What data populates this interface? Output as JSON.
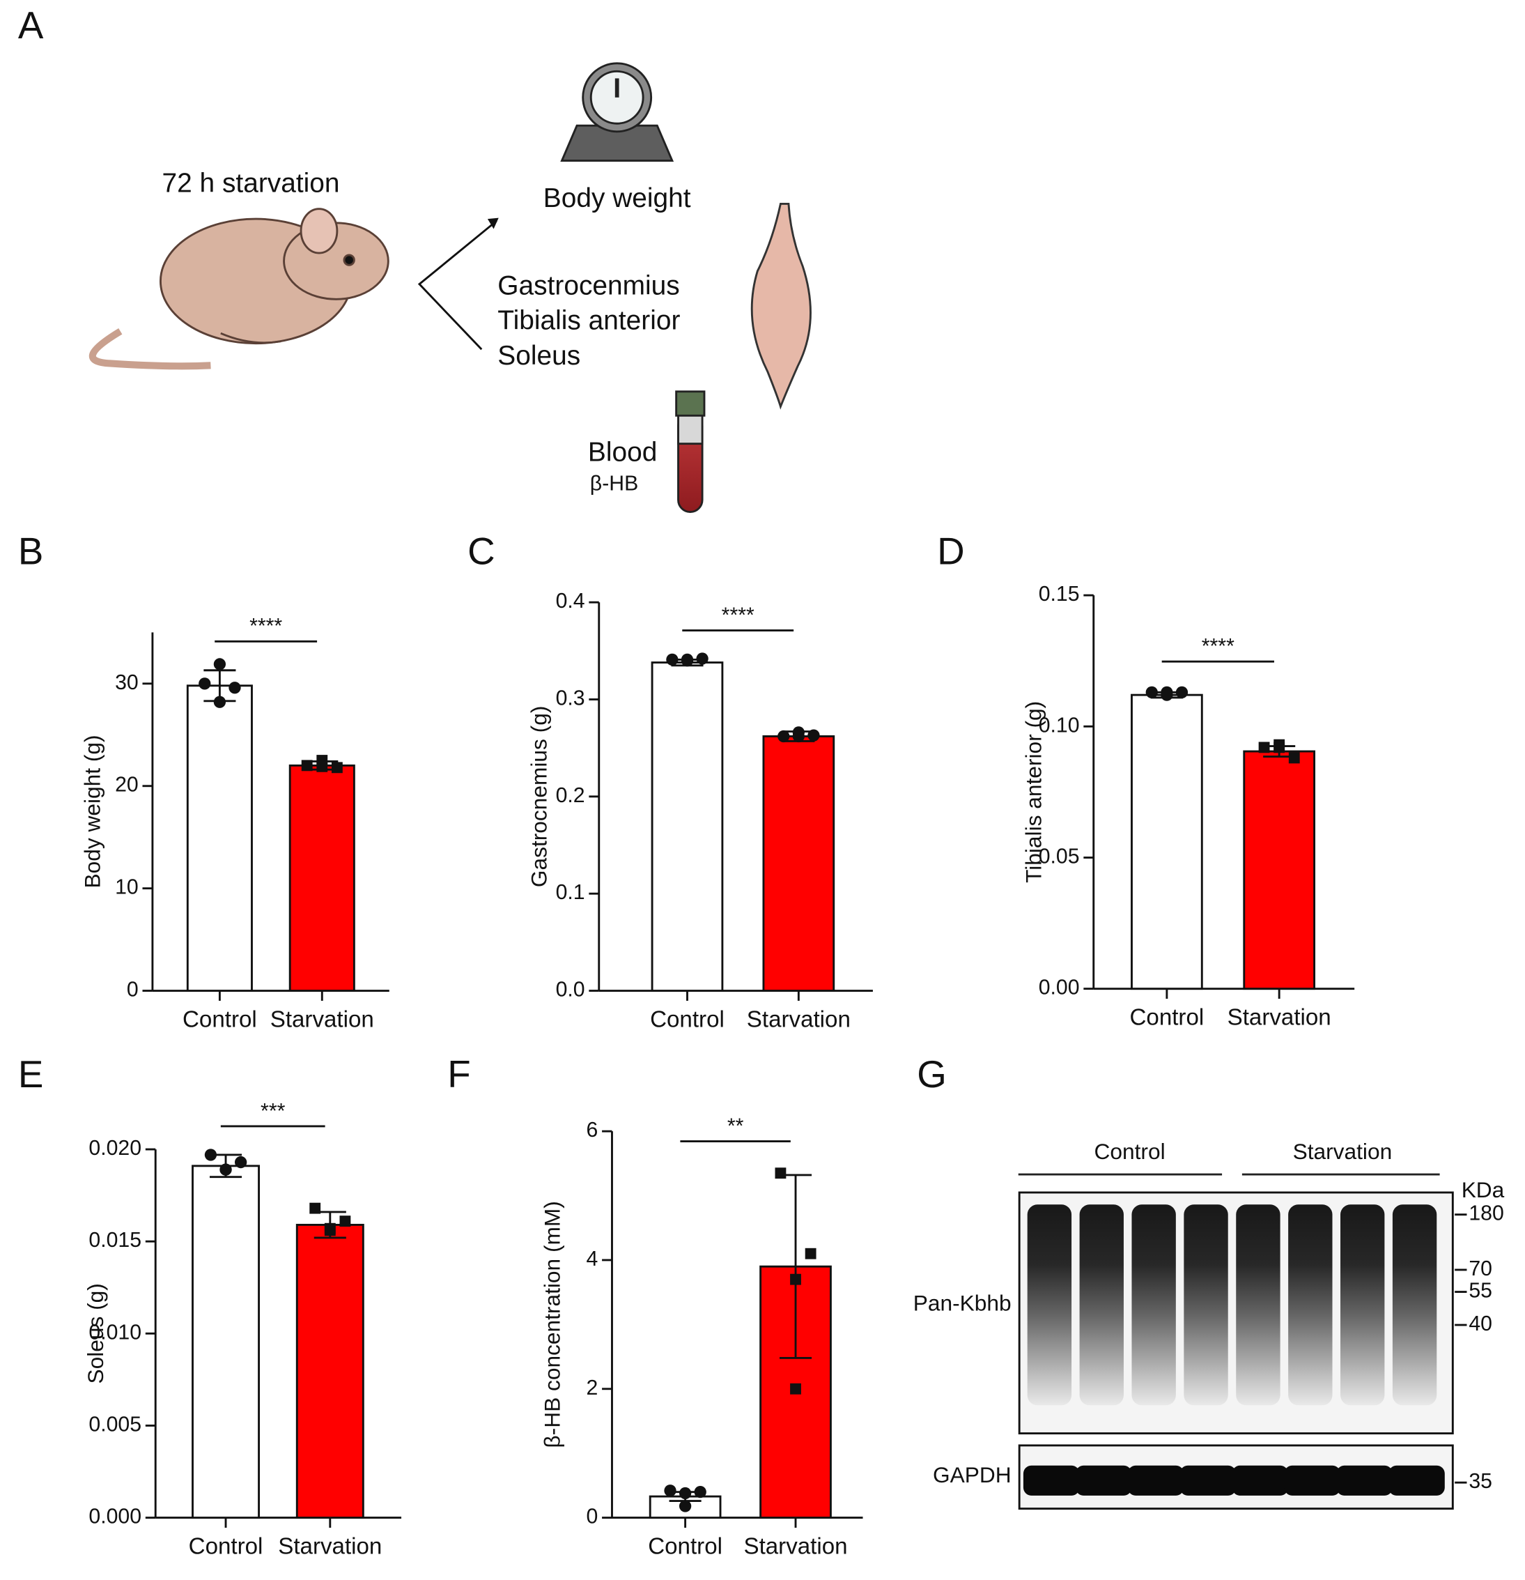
{
  "panel_labels": [
    "A",
    "B",
    "C",
    "D",
    "E",
    "F",
    "G"
  ],
  "panel_a": {
    "condition": "72 h starvation",
    "measure": "Body weight",
    "muscles": [
      "Gastrocenmius",
      "Tibialis anterior",
      "Soleus"
    ],
    "blood": "Blood",
    "blood_marker": "β-HB"
  },
  "chart_data": [
    {
      "type": "bar",
      "ylabel": "Body weight (g)",
      "categories": [
        "Control",
        "Starvation"
      ],
      "colors": [
        "#ffffff",
        "#ff0000"
      ],
      "markers": [
        "circle",
        "square"
      ],
      "values": [
        29.8,
        22.0
      ],
      "errors": [
        1.5,
        0.4
      ],
      "points": [
        [
          31.9,
          30.0,
          29.6,
          28.2
        ],
        [
          22.5,
          22.0,
          21.8,
          21.9
        ]
      ],
      "ylim": [
        0,
        35
      ],
      "yticks": [
        0,
        10,
        20,
        30
      ],
      "significance": "****"
    },
    {
      "type": "bar",
      "ylabel": "Gastrocnemius (g)",
      "categories": [
        "Control",
        "Starvation"
      ],
      "colors": [
        "#ffffff",
        "#ff0000"
      ],
      "markers": [
        "circle",
        "circle"
      ],
      "values": [
        0.338,
        0.262
      ],
      "errors": [
        0.003,
        0.005
      ],
      "points": [
        [
          0.34,
          0.341,
          0.342,
          0.341
        ],
        [
          0.266,
          0.262,
          0.263,
          0.262
        ]
      ],
      "ylim": [
        0,
        0.4
      ],
      "yticks": [
        {
          "value": 0,
          "label": "0.0"
        },
        0.1,
        0.2,
        0.3,
        0.4
      ],
      "significance": "****"
    },
    {
      "type": "bar",
      "ylabel": "Tibialis anterior (g)",
      "categories": [
        "Control",
        "Starvation"
      ],
      "colors": [
        "#ffffff",
        "#ff0000"
      ],
      "markers": [
        "circle",
        "square"
      ],
      "values": [
        0.112,
        0.0905
      ],
      "errors": [
        0.001,
        0.002
      ],
      "points": [
        [
          0.112,
          0.113,
          0.113,
          0.113
        ],
        [
          0.093,
          0.092,
          0.088,
          0.092
        ]
      ],
      "ylim": [
        0,
        0.15
      ],
      "yticks": [
        {
          "value": 0,
          "label": "0.00"
        },
        {
          "value": 0.05,
          "label": "0.05"
        },
        {
          "value": 0.1,
          "label": "0.10"
        },
        {
          "value": 0.15,
          "label": "0.15"
        }
      ],
      "significance": "****"
    },
    {
      "type": "bar",
      "ylabel": "Soleus (g)",
      "categories": [
        "Control",
        "Starvation"
      ],
      "colors": [
        "#ffffff",
        "#ff0000"
      ],
      "markers": [
        "circle",
        "square"
      ],
      "values": [
        0.0191,
        0.0159
      ],
      "errors": [
        0.0006,
        0.0007
      ],
      "points": [
        [
          0.0189,
          0.0197,
          0.0193,
          0.0189
        ],
        [
          0.0157,
          0.0168,
          0.0161,
          0.0156
        ]
      ],
      "ylim": [
        0,
        0.02
      ],
      "yticks": [
        {
          "value": 0,
          "label": "0.000"
        },
        {
          "value": 0.005,
          "label": "0.005"
        },
        {
          "value": 0.01,
          "label": "0.010"
        },
        {
          "value": 0.015,
          "label": "0.015"
        },
        {
          "value": 0.02,
          "label": "0.020"
        }
      ],
      "significance": "***"
    },
    {
      "type": "bar",
      "ylabel": "β-HB concentration (mM)",
      "categories": [
        "Control",
        "Starvation"
      ],
      "colors": [
        "#ffffff",
        "#ff0000"
      ],
      "markers": [
        "circle",
        "square"
      ],
      "values": [
        0.33,
        3.9
      ],
      "errors": [
        0.07,
        1.42
      ],
      "points": [
        [
          0.18,
          0.42,
          0.4,
          0.38
        ],
        [
          2.0,
          5.35,
          4.1,
          3.7
        ]
      ],
      "ylim": [
        0,
        6
      ],
      "yticks": [
        0,
        2,
        4,
        6
      ],
      "significance": "**"
    }
  ],
  "panel_g": {
    "groups": [
      "Control",
      "Starvation"
    ],
    "rows": [
      "Pan-Kbhb",
      "GAPDH"
    ],
    "unit": "KDa",
    "markers": [
      180,
      70,
      55,
      40,
      35
    ]
  }
}
